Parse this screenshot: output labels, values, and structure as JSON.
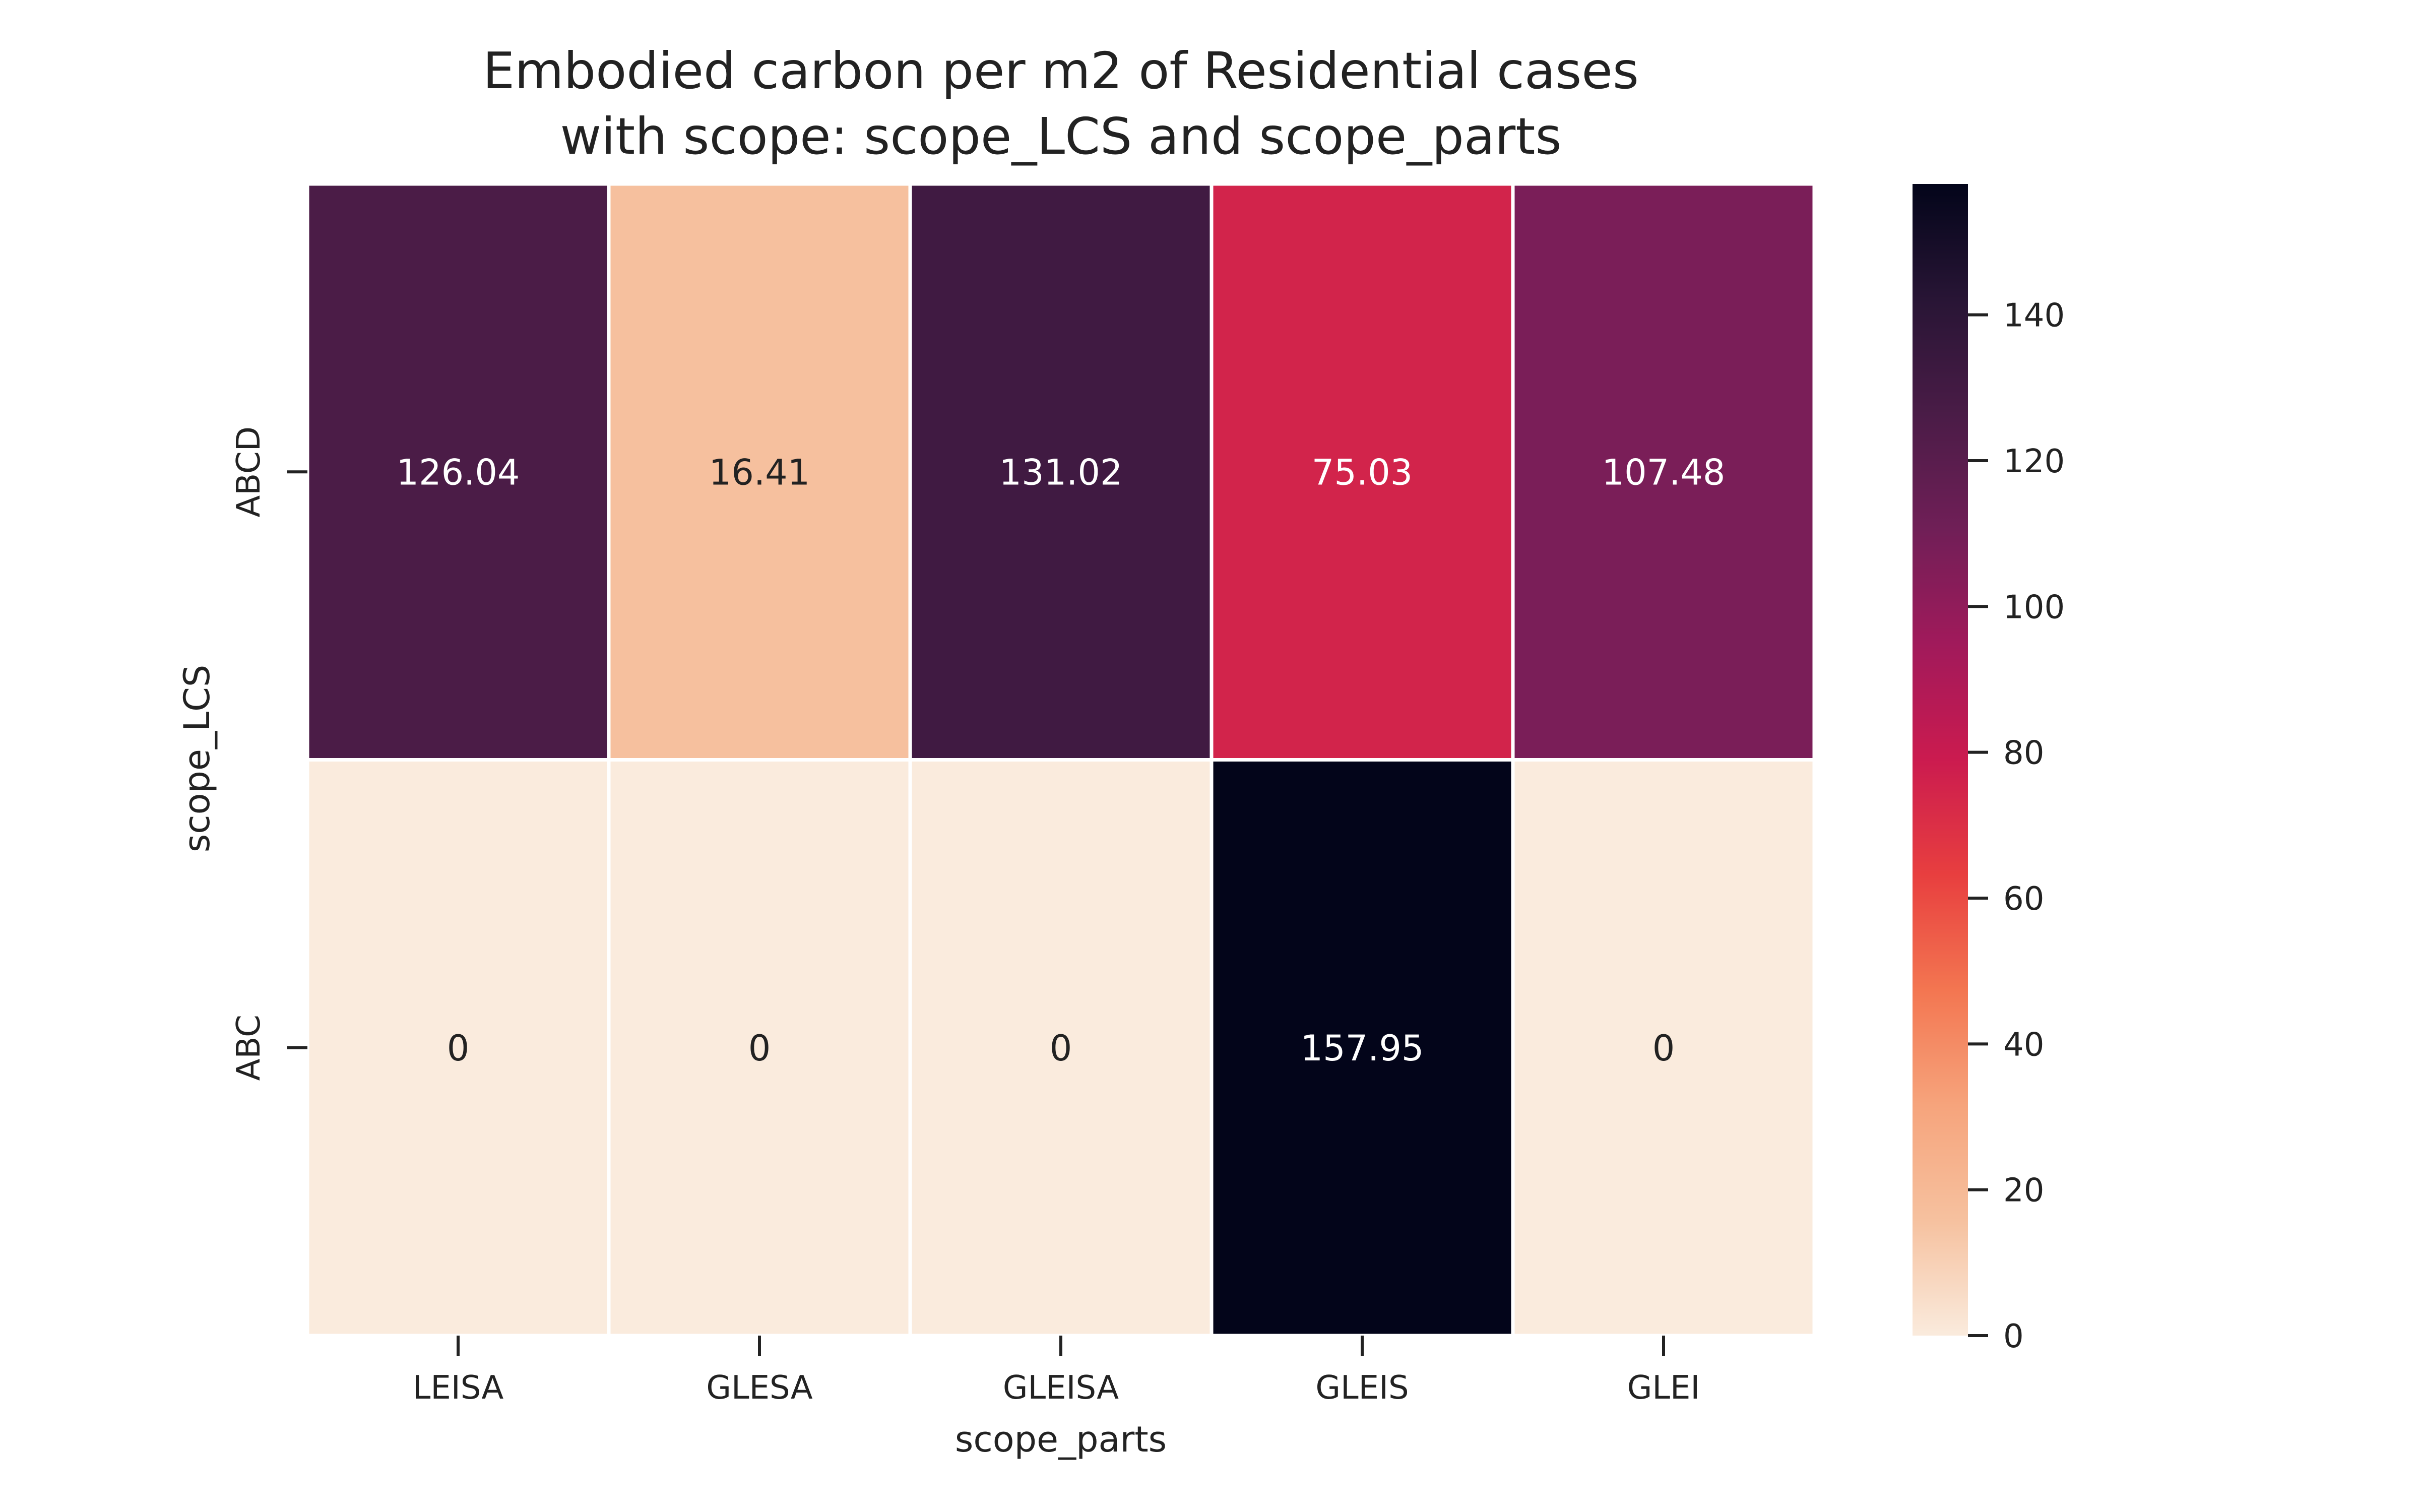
{
  "chart_data": {
    "type": "heatmap",
    "title": "Embodied carbon per m2 of Residential cases",
    "subtitle": "with scope: scope_LCS and scope_parts",
    "xlabel": "scope_parts",
    "ylabel": "scope_LCS",
    "x_categories": [
      "LEISA",
      "GLESA",
      "GLEISA",
      "GLEIS",
      "GLEI"
    ],
    "y_categories": [
      "ABCD",
      "ABC"
    ],
    "values": [
      [
        126.04,
        16.41,
        131.02,
        75.03,
        107.48
      ],
      [
        0,
        0,
        0,
        157.95,
        0
      ]
    ],
    "value_labels": [
      [
        "126.04",
        "16.41",
        "131.02",
        "75.03",
        "107.48"
      ],
      [
        "0",
        "0",
        "0",
        "157.95",
        "0"
      ]
    ],
    "colorbar": {
      "min": 0,
      "max": 157.95,
      "ticks": [
        0,
        20,
        40,
        60,
        80,
        100,
        120,
        140
      ],
      "colormap": "rocket_r"
    },
    "grid": false,
    "legend": "colorbar-right"
  }
}
